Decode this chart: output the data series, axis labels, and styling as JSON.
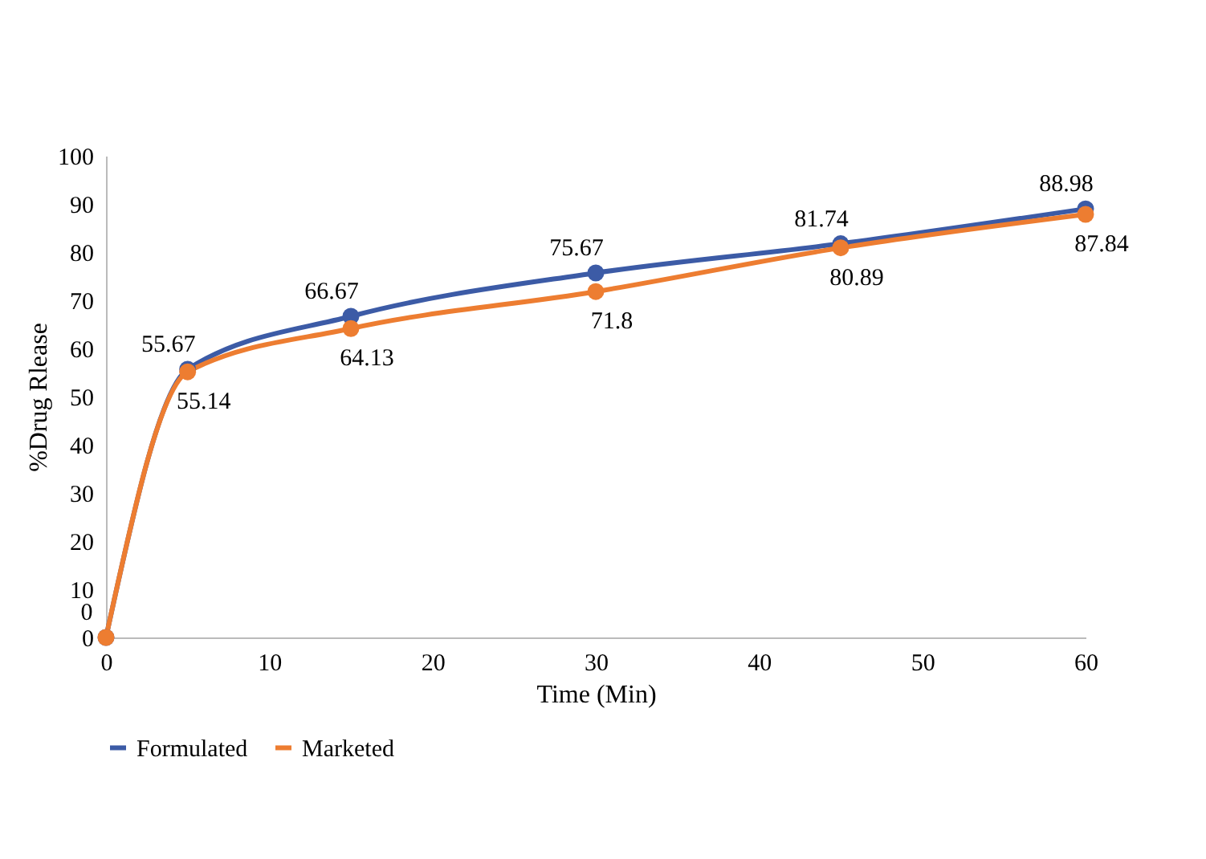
{
  "chart_data": {
    "type": "line",
    "x": [
      0,
      5,
      15,
      30,
      45,
      60
    ],
    "series": [
      {
        "name": "Formulated",
        "color": "#3c5ba6",
        "values": [
          0,
          55.67,
          66.67,
          75.67,
          81.74,
          88.98
        ],
        "value_labels": [
          "0",
          "55.67",
          "66.67",
          "75.67",
          "81.74",
          "88.98"
        ]
      },
      {
        "name": "Marketed",
        "color": "#ed7d31",
        "values": [
          0,
          55.14,
          64.13,
          71.8,
          80.89,
          87.84
        ],
        "value_labels": [
          null,
          "55.14",
          "64.13",
          "71.8",
          "80.89",
          "87.84"
        ]
      }
    ],
    "xlabel": "Time (Min)",
    "ylabel": "%Drug Rlease",
    "xlim": [
      0,
      60
    ],
    "xticks": [
      0,
      10,
      20,
      30,
      40,
      50,
      60
    ],
    "ylim": [
      0,
      100
    ],
    "yticks": [
      0,
      10,
      20,
      30,
      40,
      50,
      60,
      70,
      80,
      90,
      100
    ],
    "grid": false,
    "legend": "bottom",
    "marker": "circle",
    "line_style": "solid"
  }
}
